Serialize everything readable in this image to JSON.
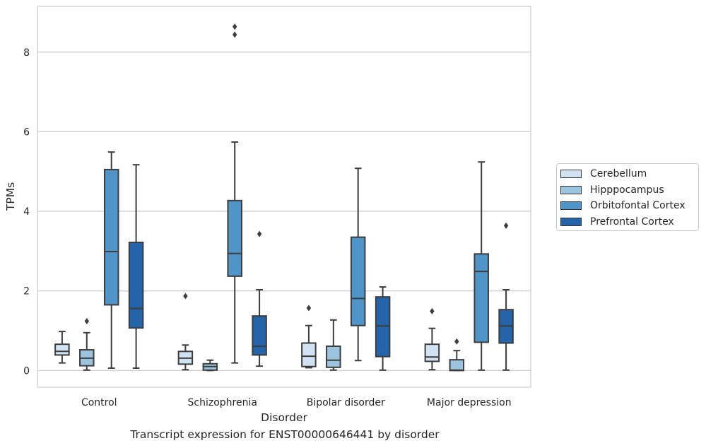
{
  "chart_data": {
    "type": "box",
    "xlabel": "Disorder",
    "ylabel": "TPMs",
    "caption": "Transcript expression for ENST00000646441 by disorder",
    "categories": [
      "Control",
      "Schizophrenia",
      "Bipolar disorder",
      "Major depression"
    ],
    "ylim": [
      -0.42,
      9.15
    ],
    "yticks": [
      0,
      2,
      4,
      6,
      8
    ],
    "grid": "horizontal",
    "legend_position": "right",
    "series": [
      {
        "name": "Cerebellum",
        "color": "#d1e2f2",
        "boxes": [
          {
            "whislo": 0.19,
            "q1": 0.39,
            "med": 0.48,
            "q3": 0.66,
            "whishi": 0.98,
            "fliers": []
          },
          {
            "whislo": 0.02,
            "q1": 0.16,
            "med": 0.31,
            "q3": 0.48,
            "whishi": 0.64,
            "fliers": [
              1.87
            ]
          },
          {
            "whislo": 0.07,
            "q1": 0.1,
            "med": 0.36,
            "q3": 0.69,
            "whishi": 1.13,
            "fliers": [
              1.57
            ]
          },
          {
            "whislo": 0.02,
            "q1": 0.23,
            "med": 0.34,
            "q3": 0.66,
            "whishi": 1.06,
            "fliers": [
              1.49
            ]
          }
        ]
      },
      {
        "name": "Hipppocampus",
        "color": "#9dc4df",
        "boxes": [
          {
            "whislo": 0.01,
            "q1": 0.12,
            "med": 0.31,
            "q3": 0.52,
            "whishi": 0.95,
            "fliers": [
              1.24
            ]
          },
          {
            "whislo": 0.0,
            "q1": 0.01,
            "med": 0.1,
            "q3": 0.17,
            "whishi": 0.26,
            "fliers": []
          },
          {
            "whislo": 0.01,
            "q1": 0.08,
            "med": 0.26,
            "q3": 0.61,
            "whishi": 1.27,
            "fliers": []
          },
          {
            "whislo": 0.0,
            "q1": 0.0,
            "med": 0.01,
            "q3": 0.27,
            "whishi": 0.5,
            "fliers": [
              0.73
            ]
          }
        ]
      },
      {
        "name": "Orbitofontal Cortex",
        "color": "#5095c9",
        "boxes": [
          {
            "whislo": 0.06,
            "q1": 1.65,
            "med": 2.99,
            "q3": 5.05,
            "whishi": 5.49,
            "fliers": []
          },
          {
            "whislo": 0.19,
            "q1": 2.37,
            "med": 2.94,
            "q3": 4.27,
            "whishi": 5.74,
            "fliers": [
              8.44,
              8.64
            ]
          },
          {
            "whislo": 0.25,
            "q1": 1.13,
            "med": 1.81,
            "q3": 3.35,
            "whishi": 5.08,
            "fliers": []
          },
          {
            "whislo": 0.01,
            "q1": 0.71,
            "med": 2.49,
            "q3": 2.93,
            "whishi": 5.24,
            "fliers": []
          }
        ]
      },
      {
        "name": "Prefrontal Cortex",
        "color": "#2465a9",
        "boxes": [
          {
            "whislo": 0.06,
            "q1": 1.07,
            "med": 1.56,
            "q3": 3.22,
            "whishi": 5.17,
            "fliers": []
          },
          {
            "whislo": 0.11,
            "q1": 0.39,
            "med": 0.61,
            "q3": 1.37,
            "whishi": 2.03,
            "fliers": [
              3.43
            ]
          },
          {
            "whislo": 0.01,
            "q1": 0.35,
            "med": 1.12,
            "q3": 1.85,
            "whishi": 2.1,
            "fliers": []
          },
          {
            "whislo": 0.01,
            "q1": 0.69,
            "med": 1.12,
            "q3": 1.53,
            "whishi": 2.03,
            "fliers": [
              3.64
            ]
          }
        ]
      }
    ]
  }
}
